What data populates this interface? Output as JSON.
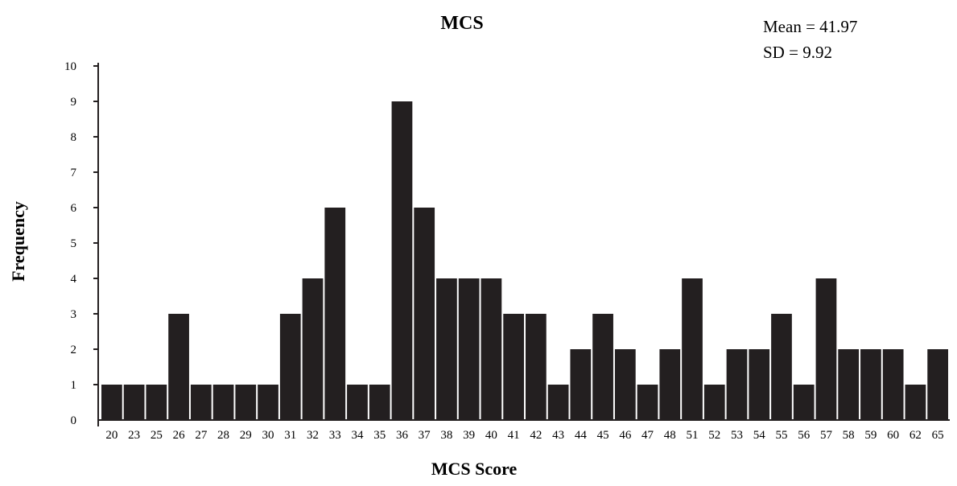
{
  "chart_data": {
    "type": "bar",
    "title": "MCS",
    "xlabel": "MCS Score",
    "ylabel": "Frequency",
    "ylim": [
      0,
      10
    ],
    "yticks": [
      0,
      1,
      2,
      3,
      4,
      5,
      6,
      7,
      8,
      9,
      10
    ],
    "grid": false,
    "legend": "none",
    "annotations": [
      "Mean = 41.97",
      "SD = 9.92"
    ],
    "bar_color": "#231f20",
    "categories": [
      "20",
      "23",
      "25",
      "26",
      "27",
      "28",
      "29",
      "30",
      "31",
      "32",
      "33",
      "34",
      "35",
      "36",
      "37",
      "38",
      "39",
      "40",
      "41",
      "42",
      "43",
      "44",
      "45",
      "46",
      "47",
      "48",
      "51",
      "52",
      "53",
      "54",
      "55",
      "56",
      "57",
      "58",
      "59",
      "60",
      "62",
      "65"
    ],
    "values": [
      1,
      1,
      1,
      3,
      1,
      1,
      1,
      1,
      3,
      4,
      6,
      1,
      1,
      9,
      6,
      4,
      4,
      4,
      3,
      3,
      1,
      2,
      3,
      2,
      1,
      2,
      4,
      1,
      2,
      2,
      3,
      1,
      4,
      2,
      2,
      2,
      1,
      2
    ]
  }
}
